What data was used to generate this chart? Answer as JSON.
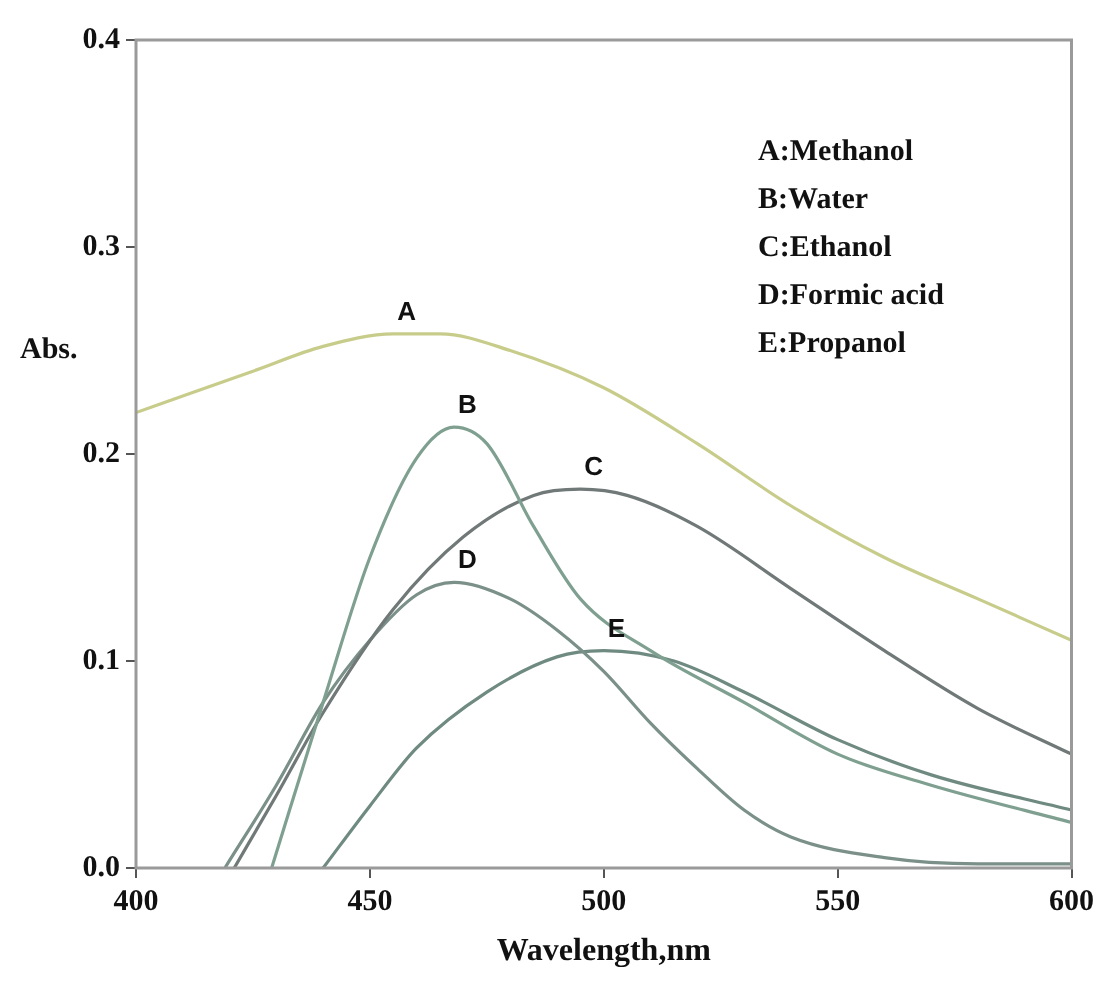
{
  "chart_data": {
    "type": "line",
    "xlabel": "Wavelength,nm",
    "ylabel": "Abs.",
    "xlim": [
      400,
      600
    ],
    "xticks": [
      400,
      450,
      500,
      550,
      600
    ],
    "ylim": [
      0,
      0.4
    ],
    "yticks": [
      {
        "value": 0,
        "label": "0.0"
      },
      0.1,
      0.2,
      0.3,
      0.4
    ],
    "grid": false,
    "marker": "none",
    "line_style": "solid",
    "series": [
      {
        "name": "A",
        "color": "#c8cc8a",
        "x": [
          400,
          410,
          425,
          440,
          455,
          465,
          480,
          500,
          520,
          540,
          560,
          580,
          600
        ],
        "values": [
          0.22,
          0.228,
          0.24,
          0.252,
          0.258,
          0.258,
          0.25,
          0.232,
          0.205,
          0.175,
          0.15,
          0.13,
          0.11
        ]
      },
      {
        "name": "B",
        "color": "#7fa090",
        "x": [
          429,
          440,
          450,
          460,
          468,
          475,
          485,
          495,
          510,
          530,
          550,
          570,
          600
        ],
        "values": [
          0,
          0.08,
          0.15,
          0.198,
          0.213,
          0.205,
          0.165,
          0.13,
          0.105,
          0.08,
          0.055,
          0.04,
          0.022
        ]
      },
      {
        "name": "C",
        "color": "#707878",
        "x": [
          421,
          430,
          440,
          455,
          470,
          485,
          495,
          505,
          520,
          540,
          560,
          580,
          600
        ],
        "values": [
          0,
          0.035,
          0.075,
          0.125,
          0.16,
          0.18,
          0.183,
          0.18,
          0.165,
          0.135,
          0.105,
          0.077,
          0.055
        ]
      },
      {
        "name": "D",
        "color": "#7a9088",
        "x": [
          419,
          430,
          440,
          450,
          460,
          468,
          480,
          490,
          500,
          510,
          520,
          530,
          540,
          560,
          580,
          600
        ],
        "values": [
          0,
          0.04,
          0.08,
          0.11,
          0.132,
          0.138,
          0.13,
          0.115,
          0.095,
          0.07,
          0.048,
          0.028,
          0.015,
          0.005,
          0.002,
          0.002
        ]
      },
      {
        "name": "E",
        "color": "#6f8a80",
        "x": [
          440,
          450,
          460,
          475,
          490,
          500,
          515,
          530,
          550,
          570,
          600
        ],
        "values": [
          0,
          0.03,
          0.058,
          0.085,
          0.102,
          0.105,
          0.1,
          0.085,
          0.062,
          0.045,
          0.028
        ]
      }
    ],
    "annotations": [
      "A:Methanol",
      "B:Water",
      "C:Ethanol",
      "D:Formic acid",
      "E:Propanol"
    ]
  }
}
